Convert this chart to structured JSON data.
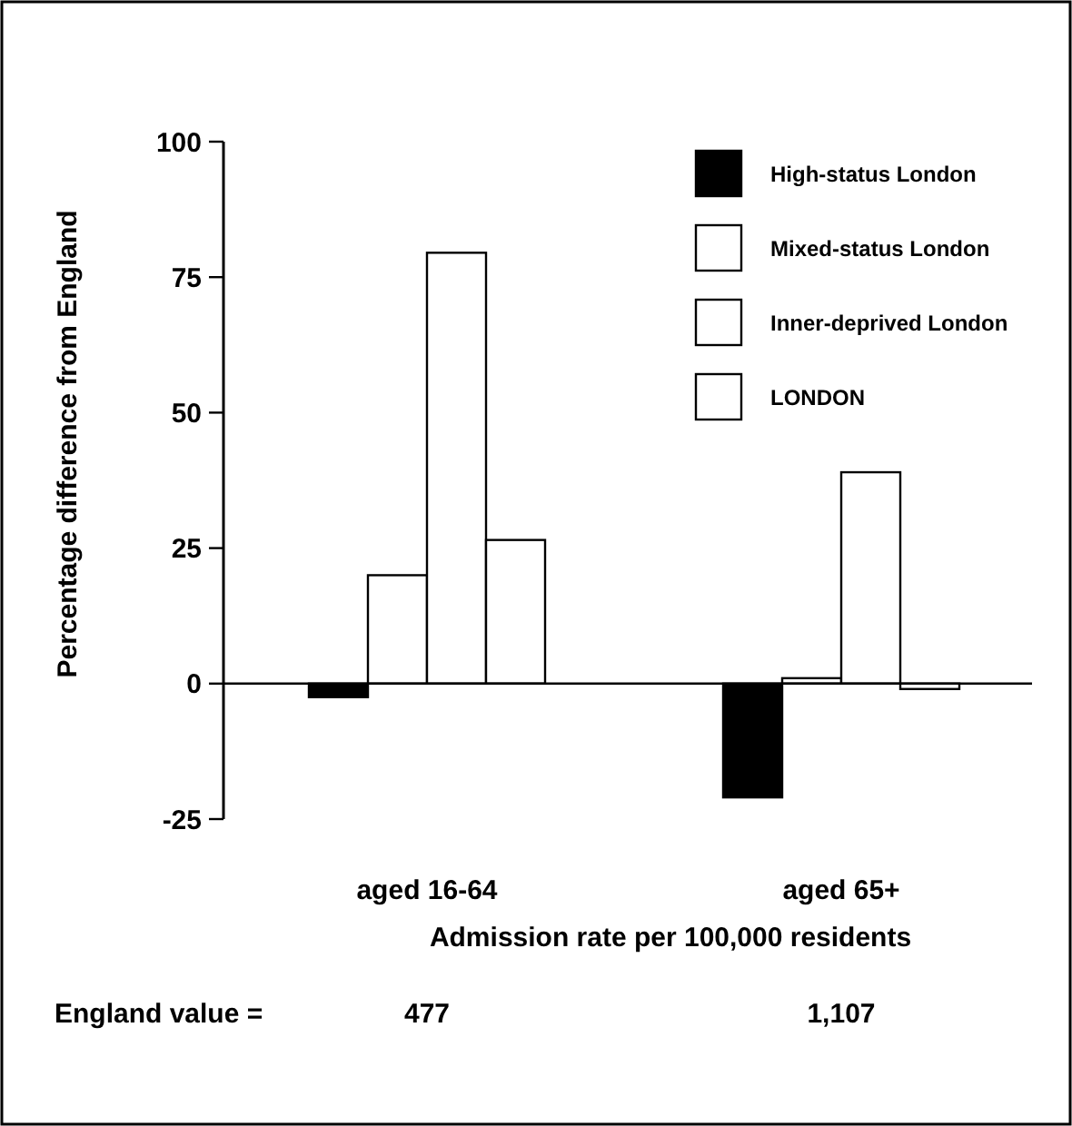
{
  "chart_data": {
    "type": "bar",
    "xlabel": "Admission rate per 100,000 residents",
    "ylabel": "Percentage difference from England",
    "categories": [
      "aged 16-64",
      "aged 65+"
    ],
    "series": [
      {
        "name": "High-status London",
        "color": "#000000",
        "values": [
          -2.5,
          -21
        ]
      },
      {
        "name": "Mixed-status London",
        "color": "#ffffff",
        "values": [
          20,
          1
        ]
      },
      {
        "name": "Inner-deprived London",
        "color": "#ffffff",
        "values": [
          79.5,
          39
        ]
      },
      {
        "name": "LONDON",
        "color": "#ffffff",
        "values": [
          26.5,
          -1
        ]
      }
    ],
    "ylim": [
      -25,
      100
    ],
    "yticks": [
      -25,
      0,
      25,
      50,
      75,
      100
    ],
    "legend": "top right",
    "annotations": [
      "England value =",
      "477",
      "1,107"
    ]
  }
}
